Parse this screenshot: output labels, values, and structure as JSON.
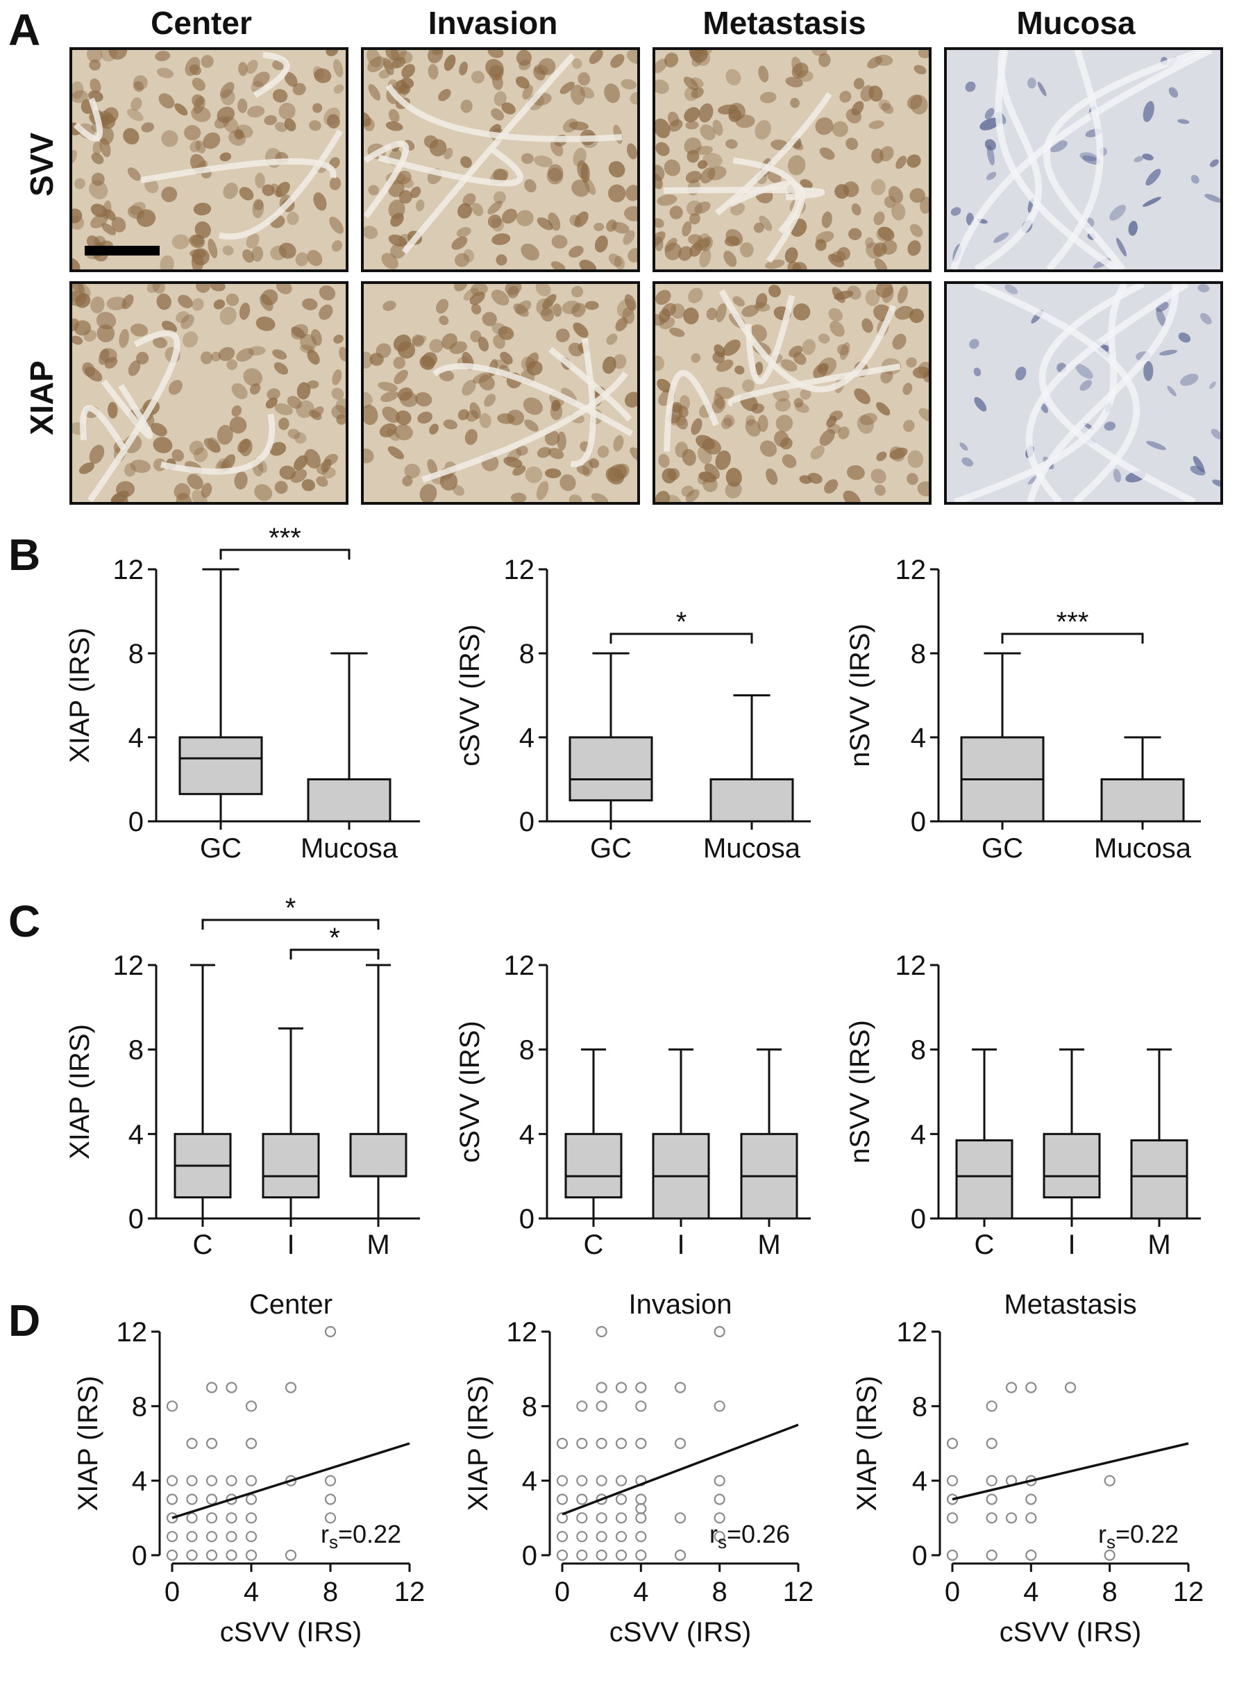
{
  "panels": {
    "A": "A",
    "B": "B",
    "C": "C",
    "D": "D"
  },
  "panel_a": {
    "columns": [
      "Center",
      "Invasion",
      "Metastasis",
      "Mucosa"
    ],
    "rows": [
      "SVV",
      "XIAP"
    ],
    "tile_colors": {
      "tumor_bg": "#d9cbb4",
      "tumor_nuclei": "#8c6a45",
      "mucosa_bg": "#dadde4",
      "mucosa_nuclei": "#5d6894"
    }
  },
  "colors": {
    "box_fill": "#cccccc",
    "line": "#111111",
    "scatter": "#8a8a8a"
  },
  "chart_data": [
    {
      "type": "box",
      "panel": "B",
      "ylabel": "XIAP (IRS)",
      "ylim": [
        0,
        12
      ],
      "yticks": [
        "0",
        "4",
        "8",
        "12"
      ],
      "categories": [
        "GC",
        "Mucosa"
      ],
      "boxes": [
        {
          "min": 0,
          "q1": 1.3,
          "median": 3,
          "q3": 4,
          "max": 12
        },
        {
          "min": 0,
          "q1": 0,
          "median": 0,
          "q3": 2,
          "max": 8
        }
      ],
      "significance": [
        {
          "from": 0,
          "to": 1,
          "label": "***"
        }
      ]
    },
    {
      "type": "box",
      "panel": "B",
      "ylabel": "cSVV (IRS)",
      "ylim": [
        0,
        12
      ],
      "yticks": [
        "0",
        "4",
        "8",
        "12"
      ],
      "categories": [
        "GC",
        "Mucosa"
      ],
      "boxes": [
        {
          "min": 0,
          "q1": 1,
          "median": 2,
          "q3": 4,
          "max": 8
        },
        {
          "min": 0,
          "q1": 0,
          "median": 0,
          "q3": 2,
          "max": 6
        }
      ],
      "significance": [
        {
          "from": 0,
          "to": 1,
          "label": "*"
        }
      ]
    },
    {
      "type": "box",
      "panel": "B",
      "ylabel": "nSVV (IRS)",
      "ylim": [
        0,
        12
      ],
      "yticks": [
        "0",
        "4",
        "8",
        "12"
      ],
      "categories": [
        "GC",
        "Mucosa"
      ],
      "boxes": [
        {
          "min": 0,
          "q1": 0,
          "median": 2,
          "q3": 4,
          "max": 8
        },
        {
          "min": 0,
          "q1": 0,
          "median": 0,
          "q3": 2,
          "max": 4
        }
      ],
      "significance": [
        {
          "from": 0,
          "to": 1,
          "label": "***"
        }
      ]
    },
    {
      "type": "box",
      "panel": "C",
      "ylabel": "XIAP (IRS)",
      "ylim": [
        0,
        12
      ],
      "yticks": [
        "0",
        "4",
        "8",
        "12"
      ],
      "categories": [
        "C",
        "I",
        "M"
      ],
      "boxes": [
        {
          "min": 0,
          "q1": 1,
          "median": 2.5,
          "q3": 4,
          "max": 12
        },
        {
          "min": 0,
          "q1": 1,
          "median": 2,
          "q3": 4,
          "max": 9
        },
        {
          "min": 0,
          "q1": 2,
          "median": 2,
          "q3": 4,
          "max": 12
        }
      ],
      "significance": [
        {
          "from": 0,
          "to": 2,
          "label": "*"
        },
        {
          "from": 1,
          "to": 2,
          "label": "*"
        }
      ]
    },
    {
      "type": "box",
      "panel": "C",
      "ylabel": "cSVV (IRS)",
      "ylim": [
        0,
        12
      ],
      "yticks": [
        "0",
        "4",
        "8",
        "12"
      ],
      "categories": [
        "C",
        "I",
        "M"
      ],
      "boxes": [
        {
          "min": 0,
          "q1": 1,
          "median": 2,
          "q3": 4,
          "max": 8
        },
        {
          "min": 0,
          "q1": 0,
          "median": 2,
          "q3": 4,
          "max": 8
        },
        {
          "min": 0,
          "q1": 0,
          "median": 2,
          "q3": 4,
          "max": 8
        }
      ],
      "significance": []
    },
    {
      "type": "box",
      "panel": "C",
      "ylabel": "nSVV (IRS)",
      "ylim": [
        0,
        12
      ],
      "yticks": [
        "0",
        "4",
        "8",
        "12"
      ],
      "categories": [
        "C",
        "I",
        "M"
      ],
      "boxes": [
        {
          "min": 0,
          "q1": 0,
          "median": 2,
          "q3": 3.7,
          "max": 8
        },
        {
          "min": 0,
          "q1": 1,
          "median": 2,
          "q3": 4,
          "max": 8
        },
        {
          "min": 0,
          "q1": 0,
          "median": 2,
          "q3": 3.7,
          "max": 8
        }
      ],
      "significance": []
    },
    {
      "type": "scatter",
      "panel": "D",
      "title": "Center",
      "xlabel": "cSVV (IRS)",
      "ylabel": "XIAP (IRS)",
      "xlim": [
        0,
        12
      ],
      "ylim": [
        0,
        12
      ],
      "xticks": [
        "0",
        "4",
        "8",
        "12"
      ],
      "yticks": [
        "0",
        "4",
        "8",
        "12"
      ],
      "fit": {
        "x": [
          0,
          12
        ],
        "y": [
          2,
          6
        ]
      },
      "annotation": {
        "r": "r",
        "sub": "s",
        "value": "=0.22"
      },
      "points": [
        [
          0,
          8
        ],
        [
          0,
          4
        ],
        [
          0,
          3
        ],
        [
          0,
          2
        ],
        [
          0,
          1
        ],
        [
          0,
          0
        ],
        [
          1,
          6
        ],
        [
          1,
          4
        ],
        [
          1,
          3
        ],
        [
          1,
          2
        ],
        [
          1,
          1
        ],
        [
          1,
          0
        ],
        [
          2,
          9
        ],
        [
          2,
          6
        ],
        [
          2,
          4
        ],
        [
          2,
          3
        ],
        [
          2,
          2
        ],
        [
          2,
          1
        ],
        [
          2,
          0
        ],
        [
          3,
          9
        ],
        [
          3,
          4
        ],
        [
          3,
          3
        ],
        [
          3,
          2
        ],
        [
          3,
          1
        ],
        [
          3,
          0
        ],
        [
          4,
          8
        ],
        [
          4,
          6
        ],
        [
          4,
          4
        ],
        [
          4,
          3
        ],
        [
          4,
          2
        ],
        [
          4,
          1
        ],
        [
          4,
          0
        ],
        [
          6,
          9
        ],
        [
          6,
          4
        ],
        [
          6,
          0
        ],
        [
          8,
          12
        ],
        [
          8,
          4
        ],
        [
          8,
          3
        ],
        [
          8,
          2
        ]
      ]
    },
    {
      "type": "scatter",
      "panel": "D",
      "title": "Invasion",
      "xlabel": "cSVV (IRS)",
      "ylabel": "XIAP (IRS)",
      "xlim": [
        0,
        12
      ],
      "ylim": [
        0,
        12
      ],
      "xticks": [
        "0",
        "4",
        "8",
        "12"
      ],
      "yticks": [
        "0",
        "4",
        "8",
        "12"
      ],
      "fit": {
        "x": [
          0,
          12
        ],
        "y": [
          2.2,
          7
        ]
      },
      "annotation": {
        "r": "r",
        "sub": "s",
        "value": "=0.26"
      },
      "points": [
        [
          0,
          6
        ],
        [
          0,
          4
        ],
        [
          0,
          3
        ],
        [
          0,
          2
        ],
        [
          0,
          1
        ],
        [
          0,
          0
        ],
        [
          1,
          8
        ],
        [
          1,
          6
        ],
        [
          1,
          4
        ],
        [
          1,
          3
        ],
        [
          1,
          2
        ],
        [
          1,
          1
        ],
        [
          1,
          0
        ],
        [
          2,
          12
        ],
        [
          2,
          9
        ],
        [
          2,
          8
        ],
        [
          2,
          6
        ],
        [
          2,
          4
        ],
        [
          2,
          3
        ],
        [
          2,
          2
        ],
        [
          2,
          1
        ],
        [
          2,
          0
        ],
        [
          3,
          9
        ],
        [
          3,
          6
        ],
        [
          3,
          4
        ],
        [
          3,
          3
        ],
        [
          3,
          2
        ],
        [
          3,
          1
        ],
        [
          3,
          0
        ],
        [
          4,
          9
        ],
        [
          4,
          8
        ],
        [
          4,
          6
        ],
        [
          4,
          4
        ],
        [
          4,
          3
        ],
        [
          4,
          2.5
        ],
        [
          4,
          2
        ],
        [
          4,
          1
        ],
        [
          4,
          0
        ],
        [
          6,
          9
        ],
        [
          6,
          6
        ],
        [
          6,
          2
        ],
        [
          6,
          0
        ],
        [
          8,
          12
        ],
        [
          8,
          8
        ],
        [
          8,
          4
        ],
        [
          8,
          3
        ],
        [
          8,
          2
        ],
        [
          8,
          1
        ]
      ]
    },
    {
      "type": "scatter",
      "panel": "D",
      "title": "Metastasis",
      "xlabel": "cSVV (IRS)",
      "ylabel": "XIAP (IRS)",
      "xlim": [
        0,
        12
      ],
      "ylim": [
        0,
        12
      ],
      "xticks": [
        "0",
        "4",
        "8",
        "12"
      ],
      "yticks": [
        "0",
        "4",
        "8",
        "12"
      ],
      "fit": {
        "x": [
          0,
          12
        ],
        "y": [
          3,
          6
        ]
      },
      "annotation": {
        "r": "r",
        "sub": "s",
        "value": "=0.22"
      },
      "points": [
        [
          0,
          6
        ],
        [
          0,
          4
        ],
        [
          0,
          3
        ],
        [
          0,
          2
        ],
        [
          0,
          0
        ],
        [
          2,
          8
        ],
        [
          2,
          6
        ],
        [
          2,
          4
        ],
        [
          2,
          3
        ],
        [
          2,
          2
        ],
        [
          2,
          0
        ],
        [
          3,
          9
        ],
        [
          3,
          4
        ],
        [
          3,
          2
        ],
        [
          4,
          9
        ],
        [
          4,
          4
        ],
        [
          4,
          3
        ],
        [
          4,
          2
        ],
        [
          4,
          0
        ],
        [
          6,
          9
        ],
        [
          8,
          4
        ],
        [
          8,
          0
        ]
      ]
    }
  ]
}
